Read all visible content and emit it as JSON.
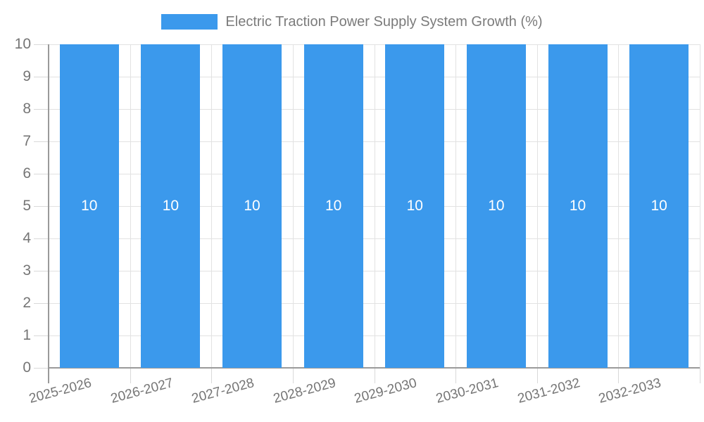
{
  "legend": {
    "label": "Electric Traction Power Supply System Growth (%)",
    "swatch_color": "#3b99ec"
  },
  "chart_data": {
    "type": "bar",
    "title": "Electric Traction Power Supply System Growth (%)",
    "categories": [
      "2025-2026",
      "2026-2027",
      "2027-2028",
      "2028-2029",
      "2029-2030",
      "2030-2031",
      "2031-2032",
      "2032-2033"
    ],
    "values": [
      10,
      10,
      10,
      10,
      10,
      10,
      10,
      10
    ],
    "bar_labels": [
      "10",
      "10",
      "10",
      "10",
      "10",
      "10",
      "10",
      "10"
    ],
    "xlabel": "",
    "ylabel": "",
    "ylim": [
      0,
      10
    ],
    "yticks": [
      "0",
      "1",
      "2",
      "3",
      "4",
      "5",
      "6",
      "7",
      "8",
      "9",
      "10"
    ],
    "grid": true,
    "legend_position": "top",
    "bar_color": "#3b99ec",
    "bar_label_color": "#ffffff",
    "axis_color": "#9a9a9a",
    "grid_color": "#e2e2e2",
    "text_color": "#757575"
  }
}
